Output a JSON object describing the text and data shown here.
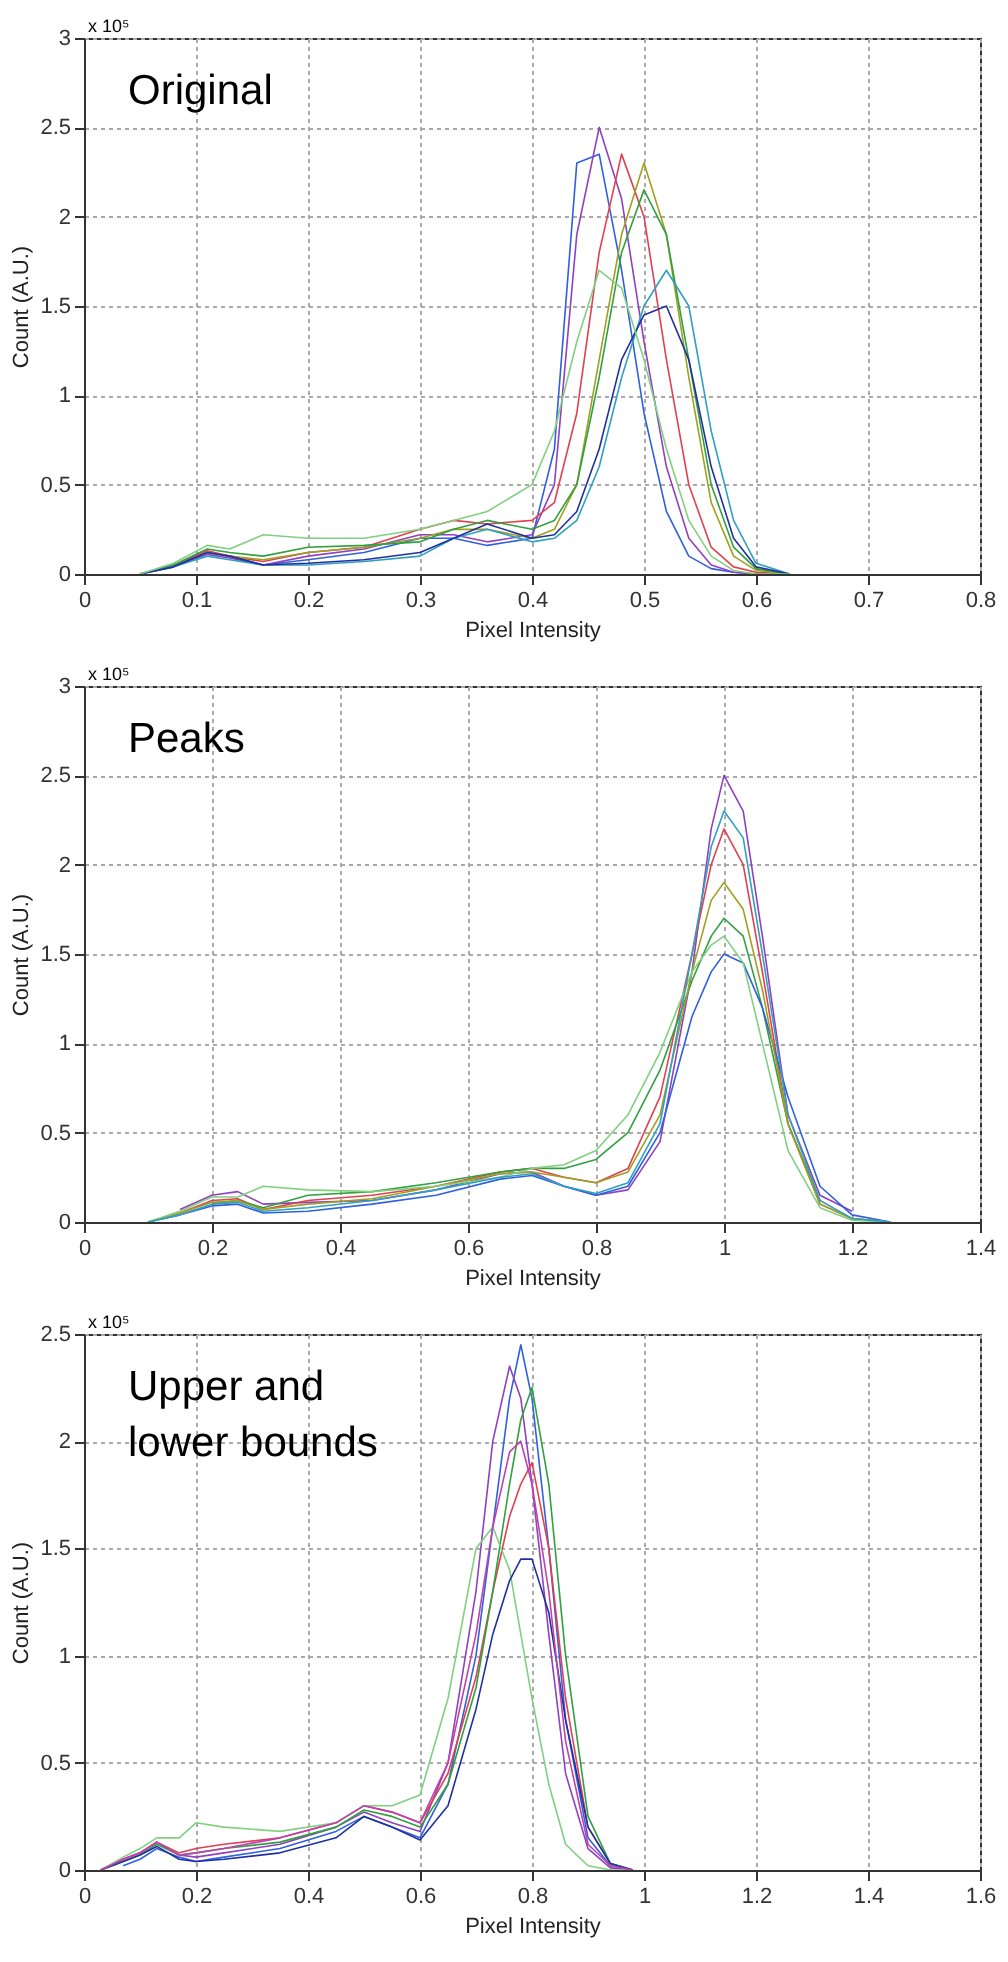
{
  "chart_data": [
    {
      "type": "line",
      "title": "Original",
      "xlabel": "Pixel Intensity",
      "ylabel": "Count (A.U.)",
      "annotations": [
        "x 10⁵"
      ],
      "grid": true,
      "xlim": [
        0,
        0.8
      ],
      "xticks": [
        0,
        0.1,
        0.2,
        0.3,
        0.4,
        0.5,
        0.6,
        0.7,
        0.8
      ],
      "ylim": [
        0,
        3
      ],
      "yticks": [
        0,
        0.5,
        1,
        1.5,
        2,
        2.5,
        3
      ],
      "x": [
        0.05,
        0.08,
        0.11,
        0.13,
        0.16,
        0.2,
        0.25,
        0.3,
        0.33,
        0.36,
        0.4,
        0.42,
        0.44,
        0.46,
        0.48,
        0.5,
        0.52,
        0.54,
        0.56,
        0.58,
        0.6,
        0.63
      ],
      "series": [
        {
          "color": "#3060e0",
          "values": [
            0,
            0.05,
            0.12,
            0.1,
            0.05,
            0.08,
            0.12,
            0.2,
            0.2,
            0.16,
            0.2,
            0.7,
            2.3,
            2.35,
            1.7,
            0.9,
            0.35,
            0.1,
            0.03,
            0.01,
            0,
            0
          ]
        },
        {
          "color": "#9040c0",
          "values": [
            0,
            0.04,
            0.11,
            0.09,
            0.05,
            0.1,
            0.14,
            0.22,
            0.22,
            0.18,
            0.22,
            0.5,
            1.9,
            2.5,
            2.1,
            1.3,
            0.6,
            0.2,
            0.05,
            0.01,
            0,
            0
          ]
        },
        {
          "color": "#e04050",
          "values": [
            0,
            0.05,
            0.13,
            0.1,
            0.07,
            0.12,
            0.15,
            0.25,
            0.3,
            0.28,
            0.3,
            0.4,
            0.9,
            1.8,
            2.35,
            2.0,
            1.2,
            0.5,
            0.15,
            0.04,
            0.01,
            0
          ]
        },
        {
          "color": "#a0a020",
          "values": [
            null,
            null,
            0.12,
            0.1,
            0.08,
            0.12,
            0.15,
            0.2,
            0.25,
            0.25,
            0.2,
            0.25,
            0.5,
            1.2,
            1.9,
            2.3,
            1.9,
            1.1,
            0.4,
            0.1,
            0.02,
            0
          ]
        },
        {
          "color": "#30a040",
          "values": [
            0,
            0.05,
            0.14,
            0.12,
            0.1,
            0.15,
            0.16,
            0.18,
            0.25,
            0.3,
            0.25,
            0.3,
            0.5,
            1.1,
            1.8,
            2.15,
            1.9,
            1.2,
            0.5,
            0.15,
            0.03,
            0
          ]
        },
        {
          "color": "#30a0c0",
          "values": [
            0,
            0.04,
            0.1,
            0.08,
            0.05,
            0.05,
            0.07,
            0.1,
            0.2,
            0.25,
            0.18,
            0.2,
            0.3,
            0.6,
            1.1,
            1.5,
            1.7,
            1.5,
            0.8,
            0.3,
            0.06,
            0
          ]
        },
        {
          "color": "#2030a0",
          "values": [
            0,
            0.04,
            0.12,
            0.1,
            0.05,
            0.06,
            0.08,
            0.12,
            0.2,
            0.28,
            0.2,
            0.22,
            0.35,
            0.7,
            1.2,
            1.45,
            1.5,
            1.2,
            0.6,
            0.2,
            0.04,
            0
          ]
        },
        {
          "color": "#80d080",
          "values": [
            0,
            0.06,
            0.16,
            0.14,
            0.22,
            0.2,
            0.2,
            0.25,
            0.3,
            0.35,
            0.5,
            0.8,
            1.3,
            1.7,
            1.6,
            1.2,
            0.7,
            0.3,
            0.1,
            0.02,
            0,
            0
          ]
        }
      ]
    },
    {
      "type": "line",
      "title": "Peaks",
      "xlabel": "Pixel Intensity",
      "ylabel": "Count (A.U.)",
      "annotations": [
        "x 10⁵"
      ],
      "grid": true,
      "xlim": [
        0,
        1.4
      ],
      "xticks": [
        0,
        0.2,
        0.4,
        0.6,
        0.8,
        1,
        1.2,
        1.4
      ],
      "ylim": [
        0,
        3
      ],
      "yticks": [
        0,
        0.5,
        1,
        1.5,
        2,
        2.5,
        3
      ],
      "x": [
        0.1,
        0.15,
        0.2,
        0.24,
        0.28,
        0.35,
        0.45,
        0.55,
        0.65,
        0.7,
        0.75,
        0.8,
        0.85,
        0.9,
        0.95,
        0.98,
        1.0,
        1.03,
        1.06,
        1.1,
        1.15,
        1.2,
        1.26
      ],
      "series": [
        {
          "color": "#9040c0",
          "values": [
            null,
            0.07,
            0.15,
            0.17,
            0.1,
            0.11,
            0.12,
            0.18,
            0.27,
            0.28,
            0.2,
            0.15,
            0.18,
            0.45,
            1.4,
            2.2,
            2.5,
            2.3,
            1.6,
            0.6,
            0.15,
            0.06,
            null
          ]
        },
        {
          "color": "#e04050",
          "values": [
            0,
            0.05,
            0.12,
            0.13,
            0.07,
            0.12,
            0.15,
            0.2,
            0.28,
            0.3,
            0.25,
            0.22,
            0.3,
            0.7,
            1.5,
            2.0,
            2.2,
            2.0,
            1.4,
            0.55,
            0.1,
            0.02,
            0
          ]
        },
        {
          "color": "#30a040",
          "values": [
            null,
            null,
            0.1,
            0.12,
            0.08,
            0.15,
            0.17,
            0.22,
            0.28,
            0.3,
            0.3,
            0.35,
            0.5,
            0.85,
            1.35,
            1.6,
            1.7,
            1.6,
            1.2,
            0.55,
            0.12,
            null,
            null
          ]
        },
        {
          "color": "#3060e0",
          "values": [
            0,
            0.04,
            0.09,
            0.1,
            0.05,
            0.06,
            0.1,
            0.15,
            0.24,
            0.26,
            0.2,
            0.15,
            0.2,
            0.5,
            1.15,
            1.4,
            1.5,
            1.45,
            1.2,
            0.7,
            0.2,
            0.04,
            0
          ]
        },
        {
          "color": "#a0a020",
          "values": [
            0,
            0.05,
            0.11,
            0.12,
            0.07,
            0.1,
            0.13,
            0.2,
            0.27,
            0.28,
            0.25,
            0.22,
            0.28,
            0.6,
            1.4,
            1.8,
            1.9,
            1.75,
            1.3,
            0.55,
            0.1,
            0.02,
            0
          ]
        },
        {
          "color": "#80d080",
          "values": [
            0,
            0.06,
            0.14,
            0.14,
            0.2,
            0.18,
            0.17,
            0.2,
            0.25,
            0.3,
            0.32,
            0.4,
            0.6,
            0.95,
            1.4,
            1.55,
            1.6,
            1.45,
            1.0,
            0.4,
            0.08,
            0.01,
            0
          ]
        },
        {
          "color": "#30a0c0",
          "values": [
            0,
            0.04,
            0.1,
            0.11,
            0.06,
            0.08,
            0.12,
            0.18,
            0.25,
            0.27,
            0.2,
            0.16,
            0.22,
            0.55,
            1.5,
            2.1,
            2.3,
            2.15,
            1.5,
            0.6,
            0.12,
            0.02,
            0
          ]
        }
      ]
    },
    {
      "type": "line",
      "title": "Upper and lower bounds",
      "xlabel": "Pixel Intensity",
      "ylabel": "Count (A.U.)",
      "annotations": [
        "x 10⁵"
      ],
      "grid": true,
      "xlim": [
        0,
        1.6
      ],
      "xticks": [
        0,
        0.2,
        0.4,
        0.6,
        0.8,
        1,
        1.2,
        1.4,
        1.6
      ],
      "ylim": [
        0,
        2.5
      ],
      "yticks": [
        0,
        0.5,
        1,
        1.5,
        2,
        2.5
      ],
      "x": [
        0.03,
        0.07,
        0.1,
        0.13,
        0.17,
        0.2,
        0.25,
        0.35,
        0.45,
        0.5,
        0.55,
        0.6,
        0.65,
        0.7,
        0.73,
        0.76,
        0.78,
        0.8,
        0.83,
        0.86,
        0.9,
        0.94,
        0.98
      ],
      "series": [
        {
          "color": "#3060e0",
          "values": [
            null,
            0.02,
            0.05,
            0.1,
            0.06,
            0.04,
            0.06,
            0.1,
            0.18,
            0.25,
            0.2,
            0.15,
            0.4,
            1.0,
            1.6,
            2.2,
            2.45,
            2.2,
            1.5,
            0.7,
            0.15,
            0.02,
            0
          ]
        },
        {
          "color": "#9040c0",
          "values": [
            0,
            0.05,
            0.08,
            0.13,
            0.07,
            0.06,
            0.08,
            0.12,
            0.2,
            0.27,
            0.22,
            0.18,
            0.5,
            1.3,
            2.0,
            2.35,
            2.2,
            1.8,
            1.1,
            0.45,
            0.1,
            0.01,
            0
          ]
        },
        {
          "color": "#e04050",
          "values": [
            0,
            0.05,
            0.08,
            0.13,
            0.08,
            0.1,
            0.12,
            0.15,
            0.22,
            0.3,
            0.27,
            0.22,
            0.45,
            0.9,
            1.3,
            1.65,
            1.8,
            1.9,
            1.5,
            0.8,
            0.2,
            0.03,
            0
          ]
        },
        {
          "color": "#30a040",
          "values": [
            0,
            0.04,
            0.07,
            0.12,
            0.07,
            0.08,
            0.1,
            0.13,
            0.2,
            0.28,
            0.25,
            0.2,
            0.4,
            0.85,
            1.3,
            1.8,
            2.1,
            2.25,
            1.8,
            1.0,
            0.25,
            0.03,
            0
          ]
        },
        {
          "color": "#80d080",
          "values": [
            0,
            0.06,
            0.1,
            0.15,
            0.15,
            0.22,
            0.2,
            0.18,
            0.22,
            0.3,
            0.3,
            0.35,
            0.8,
            1.5,
            1.6,
            1.4,
            1.1,
            0.8,
            0.4,
            0.12,
            0.02,
            0,
            0
          ]
        },
        {
          "color": "#2030a0",
          "values": [
            0,
            0.04,
            0.07,
            0.11,
            0.05,
            0.04,
            0.05,
            0.08,
            0.15,
            0.25,
            0.2,
            0.14,
            0.3,
            0.75,
            1.1,
            1.35,
            1.45,
            1.45,
            1.2,
            0.7,
            0.2,
            0.03,
            0
          ]
        },
        {
          "color": "#c040b0",
          "values": [
            0,
            0.05,
            0.08,
            0.13,
            0.07,
            0.08,
            0.1,
            0.15,
            0.22,
            0.3,
            0.27,
            0.22,
            0.5,
            1.1,
            1.6,
            1.95,
            2.0,
            1.8,
            1.3,
            0.6,
            0.12,
            0.02,
            0
          ]
        }
      ]
    }
  ]
}
